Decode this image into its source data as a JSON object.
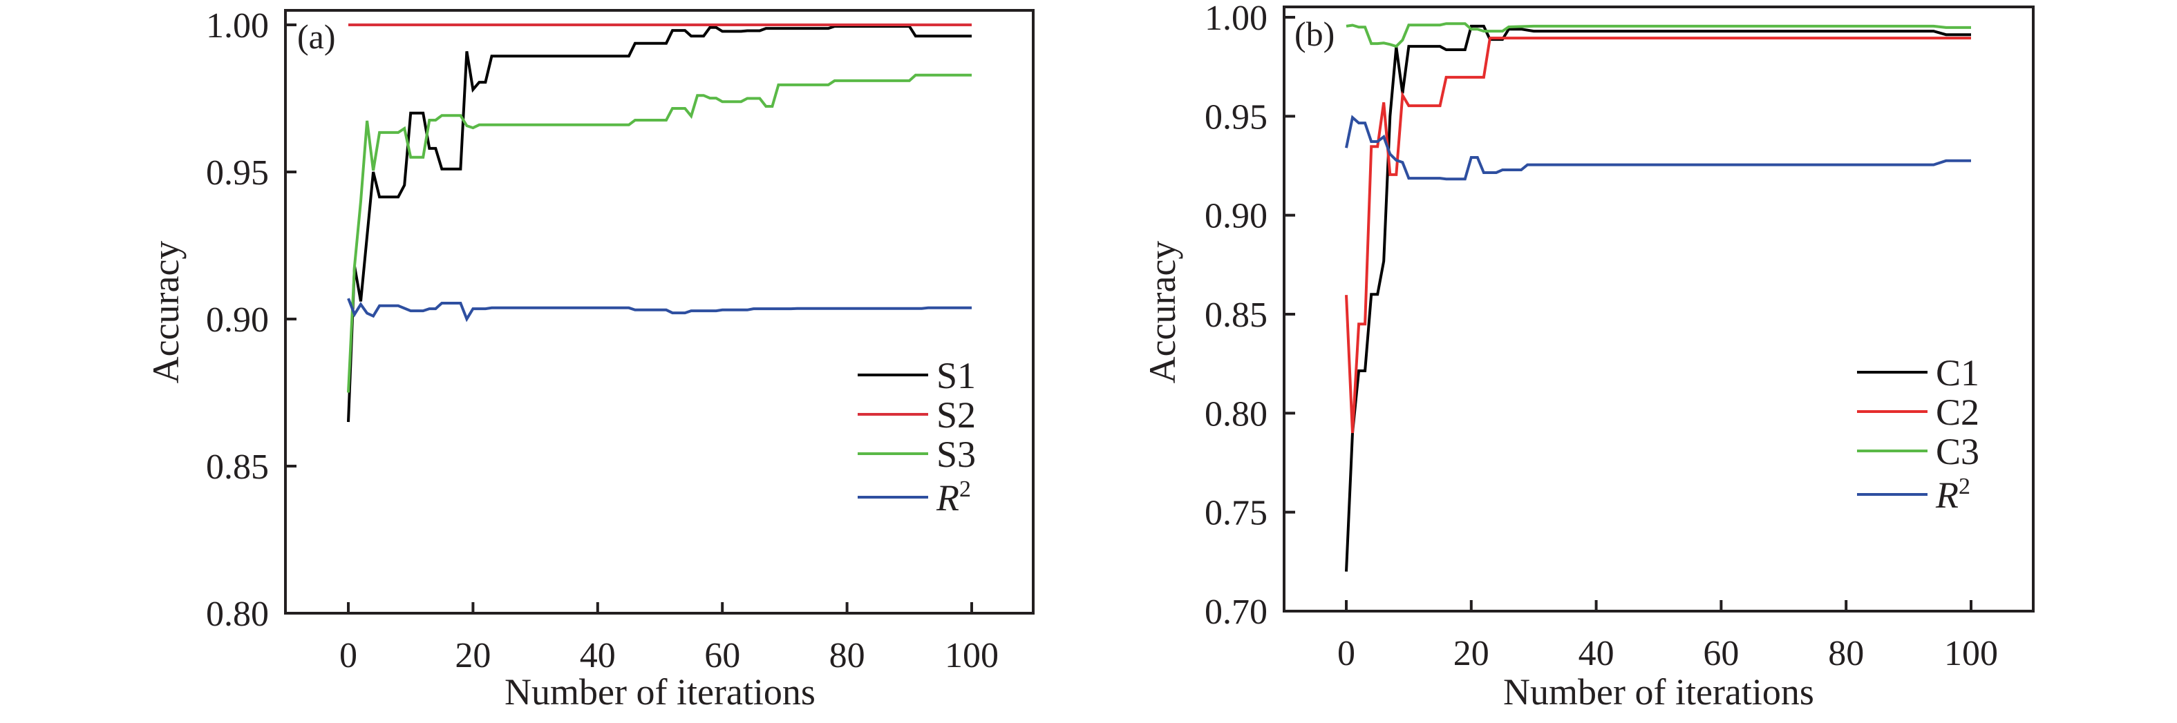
{
  "chart_data": [
    {
      "type": "line",
      "panel_label": "(a)",
      "xlabel": "Number of iterations",
      "ylabel": "Accuracy",
      "xlim": [
        -10,
        110
      ],
      "ylim": [
        0.8,
        1.005
      ],
      "xticks": [
        0,
        20,
        40,
        60,
        80,
        100
      ],
      "xtick_labels": [
        "0",
        "20",
        "40",
        "60",
        "80",
        "100"
      ],
      "yticks": [
        0.8,
        0.85,
        0.9,
        0.95,
        1.0
      ],
      "ytick_labels": [
        "0.80",
        "0.85",
        "0.90",
        "0.95",
        "1.00"
      ],
      "legend_position": "lower-right",
      "series": [
        {
          "name": "S1",
          "color": "#000000",
          "points": [
            [
              0,
              0.865
            ],
            [
              1,
              0.918
            ],
            [
              2,
              0.906
            ],
            [
              4,
              0.95
            ],
            [
              5,
              0.9415
            ],
            [
              8,
              0.9415
            ],
            [
              9,
              0.9455
            ],
            [
              10,
              0.97
            ],
            [
              12,
              0.97
            ],
            [
              13,
              0.958
            ],
            [
              14,
              0.958
            ],
            [
              15,
              0.951
            ],
            [
              18,
              0.951
            ],
            [
              19,
              0.991
            ],
            [
              20,
              0.978
            ],
            [
              21,
              0.9805
            ],
            [
              22,
              0.9805
            ],
            [
              23,
              0.9894
            ],
            [
              45,
              0.9894
            ],
            [
              46,
              0.9937
            ],
            [
              51,
              0.9937
            ],
            [
              52,
              0.9981
            ],
            [
              54,
              0.9981
            ],
            [
              55,
              0.9962
            ],
            [
              57,
              0.9962
            ],
            [
              58,
              0.9991
            ],
            [
              59,
              0.9991
            ],
            [
              60,
              0.9978
            ],
            [
              63,
              0.9978
            ],
            [
              64,
              0.998
            ],
            [
              66,
              0.998
            ],
            [
              67,
              0.9988
            ],
            [
              77,
              0.9988
            ],
            [
              78,
              0.9995
            ],
            [
              90,
              0.9995
            ],
            [
              91,
              0.9962
            ],
            [
              100,
              0.9962
            ]
          ]
        },
        {
          "name": "S2",
          "color": "#d9303a",
          "points": [
            [
              0,
              1.0
            ],
            [
              100,
              1.0
            ]
          ]
        },
        {
          "name": "S3",
          "color": "#5ab947",
          "points": [
            [
              0,
              0.875
            ],
            [
              1,
              0.918
            ],
            [
              2,
              0.94
            ],
            [
              3,
              0.9674
            ],
            [
              4,
              0.9505
            ],
            [
              5,
              0.9634
            ],
            [
              8,
              0.9634
            ],
            [
              9,
              0.9648
            ],
            [
              10,
              0.955
            ],
            [
              12,
              0.955
            ],
            [
              13,
              0.9676
            ],
            [
              14,
              0.9676
            ],
            [
              15,
              0.9692
            ],
            [
              18,
              0.9692
            ],
            [
              19,
              0.9657
            ],
            [
              20,
              0.965
            ],
            [
              21,
              0.966
            ],
            [
              45,
              0.966
            ],
            [
              46,
              0.9676
            ],
            [
              51,
              0.9676
            ],
            [
              52,
              0.9716
            ],
            [
              54,
              0.9716
            ],
            [
              55,
              0.969
            ],
            [
              56,
              0.976
            ],
            [
              57,
              0.976
            ],
            [
              58,
              0.9751
            ],
            [
              59,
              0.9751
            ],
            [
              60,
              0.9739
            ],
            [
              63,
              0.9739
            ],
            [
              64,
              0.975
            ],
            [
              66,
              0.975
            ],
            [
              67,
              0.9723
            ],
            [
              68,
              0.9723
            ],
            [
              69,
              0.9796
            ],
            [
              77,
              0.9796
            ],
            [
              78,
              0.981
            ],
            [
              90,
              0.981
            ],
            [
              91,
              0.9829
            ],
            [
              100,
              0.9829
            ]
          ]
        },
        {
          "name": "R2",
          "color": "#2e4fa0",
          "points": [
            [
              0,
              0.907
            ],
            [
              1,
              0.9016
            ],
            [
              2,
              0.905
            ],
            [
              3,
              0.902
            ],
            [
              4,
              0.901
            ],
            [
              5,
              0.9045
            ],
            [
              8,
              0.9045
            ],
            [
              10,
              0.9028
            ],
            [
              12,
              0.9028
            ],
            [
              13,
              0.9035
            ],
            [
              14,
              0.9035
            ],
            [
              15,
              0.9054
            ],
            [
              18,
              0.9054
            ],
            [
              19,
              0.9
            ],
            [
              20,
              0.9035
            ],
            [
              22,
              0.9035
            ],
            [
              23,
              0.9038
            ],
            [
              45,
              0.9038
            ],
            [
              46,
              0.9031
            ],
            [
              51,
              0.9031
            ],
            [
              52,
              0.9021
            ],
            [
              54,
              0.9021
            ],
            [
              55,
              0.9028
            ],
            [
              59,
              0.9028
            ],
            [
              60,
              0.9031
            ],
            [
              64,
              0.9031
            ],
            [
              65,
              0.9035
            ],
            [
              71,
              0.9035
            ],
            [
              72,
              0.9036
            ],
            [
              92,
              0.9036
            ],
            [
              93,
              0.9038
            ],
            [
              100,
              0.9038
            ]
          ]
        }
      ],
      "legend": [
        {
          "label": "S1",
          "color": "#000000"
        },
        {
          "label": "S2",
          "color": "#d9303a"
        },
        {
          "label": "S3",
          "color": "#5ab947"
        },
        {
          "label": "R",
          "sup": "2",
          "italic": true,
          "color": "#2e4fa0"
        }
      ]
    },
    {
      "type": "line",
      "panel_label": "(b)",
      "xlabel": "Number of iterations",
      "ylabel": "Accuracy",
      "xlim": [
        -10,
        110
      ],
      "ylim": [
        0.7,
        1.0052
      ],
      "xticks": [
        0,
        20,
        40,
        60,
        80,
        100
      ],
      "xtick_labels": [
        "0",
        "20",
        "40",
        "60",
        "80",
        "100"
      ],
      "yticks": [
        0.7,
        0.75,
        0.8,
        0.85,
        0.9,
        0.95,
        1.0
      ],
      "ytick_labels": [
        "0.70",
        "0.75",
        "0.80",
        "0.85",
        "0.90",
        "0.95",
        "1.00"
      ],
      "legend_position": "lower-right",
      "series": [
        {
          "name": "C1",
          "color": "#000000",
          "points": [
            [
              0,
              0.72
            ],
            [
              1,
              0.79
            ],
            [
              2,
              0.8214
            ],
            [
              3,
              0.8214
            ],
            [
              4,
              0.86
            ],
            [
              5,
              0.86
            ],
            [
              6,
              0.8768
            ],
            [
              7,
              0.95
            ],
            [
              8,
              0.985
            ],
            [
              9,
              0.9616
            ],
            [
              10,
              0.9853
            ],
            [
              15,
              0.9853
            ],
            [
              16,
              0.9836
            ],
            [
              19,
              0.9836
            ],
            [
              20,
              0.9955
            ],
            [
              22,
              0.9955
            ],
            [
              23,
              0.9888
            ],
            [
              25,
              0.9888
            ],
            [
              26,
              0.994
            ],
            [
              28,
              0.994
            ],
            [
              30,
              0.993
            ],
            [
              94,
              0.993
            ],
            [
              96,
              0.9912
            ],
            [
              100,
              0.9912
            ]
          ]
        },
        {
          "name": "C2",
          "color": "#e52d2d",
          "points": [
            [
              0,
              0.8597
            ],
            [
              1,
              0.79
            ],
            [
              2,
              0.845
            ],
            [
              3,
              0.845
            ],
            [
              4,
              0.9347
            ],
            [
              5,
              0.9347
            ],
            [
              6,
              0.957
            ],
            [
              7,
              0.9205
            ],
            [
              8,
              0.9205
            ],
            [
              9,
              0.9606
            ],
            [
              10,
              0.9553
            ],
            [
              15,
              0.9553
            ],
            [
              16,
              0.9697
            ],
            [
              22,
              0.9697
            ],
            [
              23,
              0.9895
            ],
            [
              100,
              0.9895
            ]
          ]
        },
        {
          "name": "C3",
          "color": "#5ab947",
          "points": [
            [
              0,
              0.9955
            ],
            [
              1,
              0.996
            ],
            [
              2,
              0.995
            ],
            [
              3,
              0.995
            ],
            [
              4,
              0.9867
            ],
            [
              5,
              0.9867
            ],
            [
              6,
              0.987
            ],
            [
              7,
              0.9863
            ],
            [
              8,
              0.9853
            ],
            [
              9,
              0.9885
            ],
            [
              10,
              0.9961
            ],
            [
              15,
              0.9961
            ],
            [
              16,
              0.9968
            ],
            [
              19,
              0.9968
            ],
            [
              20,
              0.994
            ],
            [
              21,
              0.994
            ],
            [
              22,
              0.993
            ],
            [
              25,
              0.993
            ],
            [
              26,
              0.9951
            ],
            [
              30,
              0.9955
            ],
            [
              94,
              0.9955
            ],
            [
              96,
              0.9948
            ],
            [
              100,
              0.9948
            ]
          ]
        },
        {
          "name": "R2",
          "color": "#2e4fa0",
          "points": [
            [
              0,
              0.934
            ],
            [
              1,
              0.9494
            ],
            [
              2,
              0.9466
            ],
            [
              3,
              0.9466
            ],
            [
              4,
              0.9372
            ],
            [
              5,
              0.9372
            ],
            [
              6,
              0.9396
            ],
            [
              7,
              0.9309
            ],
            [
              8,
              0.9278
            ],
            [
              9,
              0.9267
            ],
            [
              10,
              0.9187
            ],
            [
              15,
              0.9187
            ],
            [
              16,
              0.9183
            ],
            [
              19,
              0.9183
            ],
            [
              20,
              0.9292
            ],
            [
              21,
              0.9292
            ],
            [
              22,
              0.9215
            ],
            [
              24,
              0.9215
            ],
            [
              25,
              0.9229
            ],
            [
              28,
              0.9229
            ],
            [
              29,
              0.9255
            ],
            [
              94,
              0.9255
            ],
            [
              96,
              0.9275
            ],
            [
              100,
              0.9275
            ]
          ]
        }
      ],
      "legend": [
        {
          "label": "C1",
          "color": "#000000"
        },
        {
          "label": "C2",
          "color": "#e52d2d"
        },
        {
          "label": "C3",
          "color": "#5ab947"
        },
        {
          "label": "R",
          "sup": "2",
          "italic": true,
          "color": "#2e4fa0"
        }
      ]
    }
  ]
}
